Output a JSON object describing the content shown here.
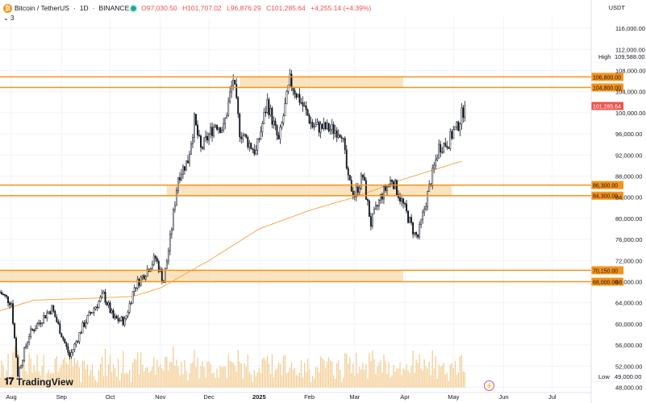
{
  "header": {
    "symbol_icon": "bitcoin-icon",
    "symbol": "Bitcoin / TetherUS",
    "interval": "1D",
    "exchange": "BINANCE",
    "open": "O97,030.50",
    "high": "H101,707.02",
    "low": "L96,876.29",
    "close": "C101,285.64",
    "change": "+4,255.14 (+4.39%)",
    "indicator_count": "3",
    "currency": "USDT"
  },
  "branding": {
    "logo_text": "TradingView",
    "logo_icon": "tradingview-logo-icon",
    "bolt_icon": "lightning-icon"
  },
  "price_info": {
    "high_label": "High",
    "high_value": "109,588.00",
    "low_label": "Low",
    "low_value": "49,000.00"
  },
  "chart_data": {
    "type": "candlestick",
    "y_axis": {
      "ticks": [
        116000,
        112000,
        108000,
        104000,
        100000,
        96000,
        92000,
        88000,
        84000,
        80000,
        76000,
        72000,
        68000,
        64000,
        60000,
        56000,
        52000,
        48000
      ],
      "tick_labels": [
        "116,000.00",
        "112,000.00",
        "108,000.00",
        "104,000.00",
        "100,000.00",
        "96,000.00",
        "92,000.00",
        "88,000.00",
        "84,000.00",
        "80,000.00",
        "76,000.00",
        "72,000.00",
        "68,000.00",
        "64,000.00",
        "60,000.00",
        "56,000.00",
        "52,000.00",
        "48,000.00"
      ],
      "range": [
        47000,
        118000
      ]
    },
    "x_axis": {
      "ticks": [
        "2024-08-01",
        "2024-09-01",
        "2024-10-01",
        "2024-11-01",
        "2024-12-01",
        "2025-01-01",
        "2025-02-01",
        "2025-03-01",
        "2025-04-01",
        "2025-05-01",
        "2025-06-01",
        "2025-07-01"
      ],
      "tick_labels": [
        "Aug",
        "Sep",
        "Oct",
        "Nov",
        "Dec",
        "2025",
        "Feb",
        "Mar",
        "Apr",
        "May",
        "Jun",
        "Jul"
      ]
    },
    "price_path": [
      [
        "2024-07-25",
        66000
      ],
      [
        "2024-08-01",
        64000
      ],
      [
        "2024-08-05",
        50500
      ],
      [
        "2024-08-12",
        58000
      ],
      [
        "2024-08-20",
        61000
      ],
      [
        "2024-08-26",
        63000
      ],
      [
        "2024-09-01",
        58000
      ],
      [
        "2024-09-06",
        53800
      ],
      [
        "2024-09-14",
        59500
      ],
      [
        "2024-09-20",
        62500
      ],
      [
        "2024-09-27",
        65500
      ],
      [
        "2024-10-03",
        61000
      ],
      [
        "2024-10-10",
        60500
      ],
      [
        "2024-10-16",
        67000
      ],
      [
        "2024-10-21",
        69000
      ],
      [
        "2024-10-29",
        72500
      ],
      [
        "2024-11-03",
        68000
      ],
      [
        "2024-11-07",
        76000
      ],
      [
        "2024-11-12",
        88000
      ],
      [
        "2024-11-18",
        91000
      ],
      [
        "2024-11-22",
        98500
      ],
      [
        "2024-11-26",
        93000
      ],
      [
        "2024-12-05",
        98000
      ],
      [
        "2024-12-10",
        97000
      ],
      [
        "2024-12-16",
        106500
      ],
      [
        "2024-12-20",
        96500
      ],
      [
        "2024-12-30",
        92500
      ],
      [
        "2025-01-06",
        102000
      ],
      [
        "2025-01-13",
        94500
      ],
      [
        "2025-01-20",
        106000
      ],
      [
        "2025-01-27",
        102000
      ],
      [
        "2025-02-03",
        97500
      ],
      [
        "2025-02-12",
        97000
      ],
      [
        "2025-02-21",
        96500
      ],
      [
        "2025-02-25",
        87000
      ],
      [
        "2025-03-01",
        84500
      ],
      [
        "2025-03-06",
        88000
      ],
      [
        "2025-03-11",
        79000
      ],
      [
        "2025-03-17",
        84000
      ],
      [
        "2025-03-24",
        87500
      ],
      [
        "2025-03-31",
        82500
      ],
      [
        "2025-04-07",
        77000
      ],
      [
        "2025-04-09",
        76500
      ],
      [
        "2025-04-15",
        84500
      ],
      [
        "2025-04-22",
        93500
      ],
      [
        "2025-04-28",
        94500
      ],
      [
        "2025-05-01",
        96500
      ],
      [
        "2025-05-03",
        97000
      ],
      [
        "2025-05-08",
        101285
      ]
    ],
    "moving_average": [
      [
        "2024-07-25",
        62500
      ],
      [
        "2024-08-15",
        64500
      ],
      [
        "2024-09-15",
        64800
      ],
      [
        "2024-10-15",
        65200
      ],
      [
        "2024-11-01",
        66800
      ],
      [
        "2024-12-01",
        72000
      ],
      [
        "2025-01-01",
        78000
      ],
      [
        "2025-02-01",
        81500
      ],
      [
        "2025-03-01",
        84000
      ],
      [
        "2025-04-01",
        87500
      ],
      [
        "2025-05-08",
        91000
      ]
    ],
    "levels": [
      106800,
      104800,
      86300,
      84300,
      70150,
      68000
    ],
    "level_labels": [
      "106,800.00",
      "104,800.00",
      "86,300.00",
      "84,300.00",
      "70,150.00",
      "68,000.00"
    ],
    "zones": [
      {
        "from": 104800,
        "to": 106800,
        "start": "2024-12-20",
        "end": "2025-03-31"
      },
      {
        "from": 84300,
        "to": 86300,
        "start": "2024-11-05",
        "end": "2025-04-30"
      },
      {
        "from": 68000,
        "to": 70150,
        "start": "2024-07-25",
        "end": "2025-03-31"
      }
    ],
    "current_price": 101285.64,
    "current_price_label": "101,285.64",
    "high_price": 109588,
    "low_price": 49000,
    "volume": {
      "visible": true
    }
  },
  "colors": {
    "up": "#26a69a",
    "down": "#ef5350",
    "bar": "#131722",
    "level": "#f7931a",
    "zone": "#f8d9a8",
    "ma": "#f7a94b",
    "volume": "#f3c98b",
    "grid": "#f0f3fa"
  }
}
